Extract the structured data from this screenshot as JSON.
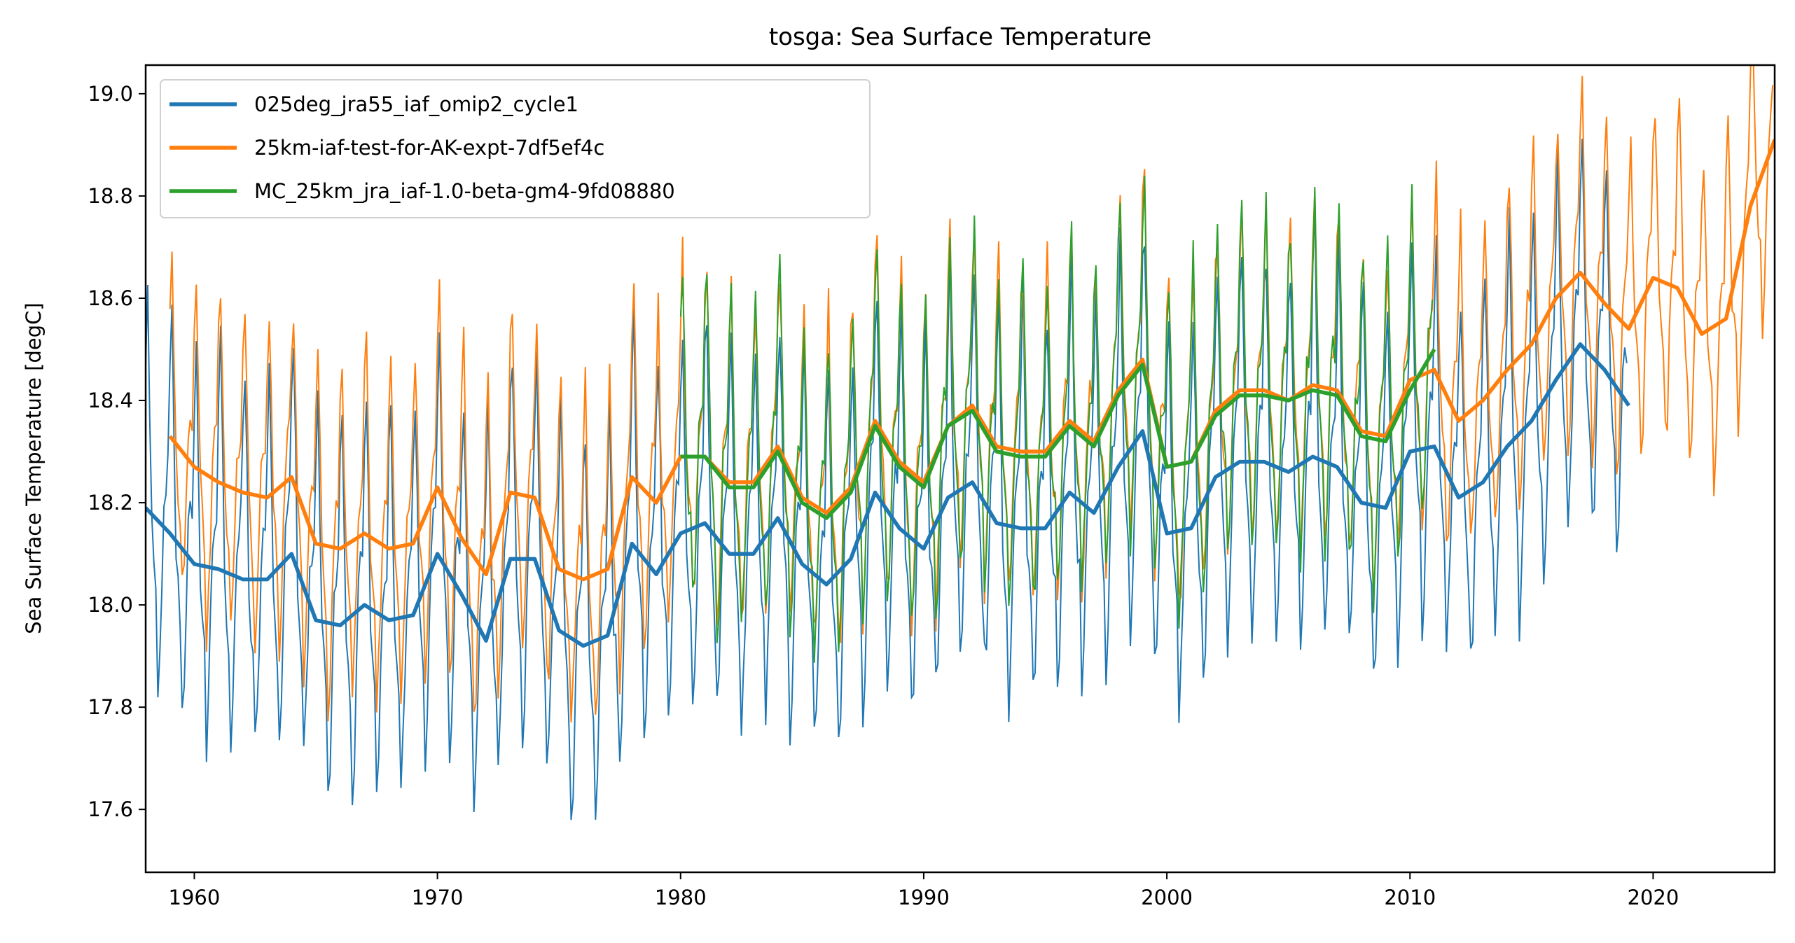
{
  "chart_data": {
    "type": "line",
    "title": "tosga: Sea Surface Temperature",
    "xlabel": "",
    "ylabel": "Sea Surface Temperature [degC]",
    "xlim": [
      1958,
      2025
    ],
    "ylim": [
      17.477,
      19.056
    ],
    "grid": false,
    "legend_placement": "upper-left",
    "x_ticks": [
      "1960",
      "1970",
      "1980",
      "1990",
      "2000",
      "2010",
      "2020"
    ],
    "y_ticks": [
      "17.6",
      "17.8",
      "18.0",
      "18.2",
      "18.4",
      "18.6",
      "18.8",
      "19.0"
    ],
    "series": [
      {
        "name": "025deg_jra55_iaf_omip2_cycle1",
        "color": "#1f77b4",
        "annual_mean": {
          "x": [
            1958,
            1959,
            1960,
            1961,
            1962,
            1963,
            1964,
            1965,
            1966,
            1967,
            1968,
            1969,
            1970,
            1971,
            1972,
            1973,
            1974,
            1975,
            1976,
            1977,
            1978,
            1979,
            1980,
            1981,
            1982,
            1983,
            1984,
            1985,
            1986,
            1987,
            1988,
            1989,
            1990,
            1991,
            1992,
            1993,
            1994,
            1995,
            1996,
            1997,
            1998,
            1999,
            2000,
            2001,
            2002,
            2003,
            2004,
            2005,
            2006,
            2007,
            2008,
            2009,
            2010,
            2011,
            2012,
            2013,
            2014,
            2015,
            2016,
            2017,
            2018,
            2019
          ],
          "y": [
            18.19,
            18.14,
            18.08,
            18.07,
            18.05,
            18.05,
            18.1,
            17.97,
            17.96,
            18.0,
            17.97,
            17.98,
            18.1,
            18.02,
            17.93,
            18.09,
            18.09,
            17.95,
            17.92,
            17.94,
            18.12,
            18.06,
            18.14,
            18.16,
            18.1,
            18.1,
            18.17,
            18.08,
            18.04,
            18.09,
            18.22,
            18.15,
            18.11,
            18.21,
            18.24,
            18.16,
            18.15,
            18.15,
            18.22,
            18.18,
            18.27,
            18.34,
            18.14,
            18.15,
            18.25,
            18.28,
            18.28,
            18.26,
            18.29,
            18.27,
            18.2,
            18.19,
            18.3,
            18.31,
            18.21,
            18.24,
            18.31,
            18.36,
            18.44,
            18.51,
            18.46,
            18.39
          ]
        }
      },
      {
        "name": "25km-iaf-test-for-AK-expt-7df5ef4c",
        "color": "#ff7f0e",
        "annual_mean": {
          "x": [
            1959,
            1960,
            1961,
            1962,
            1963,
            1964,
            1965,
            1966,
            1967,
            1968,
            1969,
            1970,
            1971,
            1972,
            1973,
            1974,
            1975,
            1976,
            1977,
            1978,
            1979,
            1980,
            1981,
            1982,
            1983,
            1984,
            1985,
            1986,
            1987,
            1988,
            1989,
            1990,
            1991,
            1992,
            1993,
            1994,
            1995,
            1996,
            1997,
            1998,
            1999,
            2000,
            2001,
            2002,
            2003,
            2004,
            2005,
            2006,
            2007,
            2008,
            2009,
            2010,
            2011,
            2012,
            2013,
            2014,
            2015,
            2016,
            2017,
            2018,
            2019,
            2020,
            2021,
            2022,
            2023,
            2024,
            2025
          ],
          "y": [
            18.33,
            18.27,
            18.24,
            18.22,
            18.21,
            18.25,
            18.12,
            18.11,
            18.14,
            18.11,
            18.12,
            18.23,
            18.13,
            18.06,
            18.22,
            18.21,
            18.07,
            18.05,
            18.07,
            18.25,
            18.2,
            18.29,
            18.29,
            18.24,
            18.24,
            18.31,
            18.21,
            18.18,
            18.23,
            18.36,
            18.28,
            18.24,
            18.35,
            18.39,
            18.31,
            18.3,
            18.3,
            18.36,
            18.32,
            18.42,
            18.48,
            18.27,
            18.28,
            18.38,
            18.42,
            18.42,
            18.4,
            18.43,
            18.42,
            18.34,
            18.33,
            18.44,
            18.46,
            18.36,
            18.4,
            18.46,
            18.51,
            18.6,
            18.65,
            18.59,
            18.54,
            18.64,
            18.62,
            18.53,
            18.56,
            18.78,
            18.91
          ]
        }
      },
      {
        "name": "MC_25km_jra_iaf-1.0-beta-gm4-9fd08880",
        "color": "#2ca02c",
        "annual_mean": {
          "x": [
            1980,
            1981,
            1982,
            1983,
            1984,
            1985,
            1986,
            1987,
            1988,
            1989,
            1990,
            1991,
            1992,
            1993,
            1994,
            1995,
            1996,
            1997,
            1998,
            1999,
            2000,
            2001,
            2002,
            2003,
            2004,
            2005,
            2006,
            2007,
            2008,
            2009,
            2010,
            2011
          ],
          "y": [
            18.29,
            18.29,
            18.23,
            18.23,
            18.3,
            18.2,
            18.17,
            18.22,
            18.35,
            18.27,
            18.23,
            18.35,
            18.38,
            18.3,
            18.29,
            18.29,
            18.35,
            18.31,
            18.41,
            18.47,
            18.27,
            18.28,
            18.37,
            18.41,
            18.41,
            18.4,
            18.42,
            18.41,
            18.33,
            18.32,
            18.42,
            18.5
          ]
        }
      }
    ]
  }
}
